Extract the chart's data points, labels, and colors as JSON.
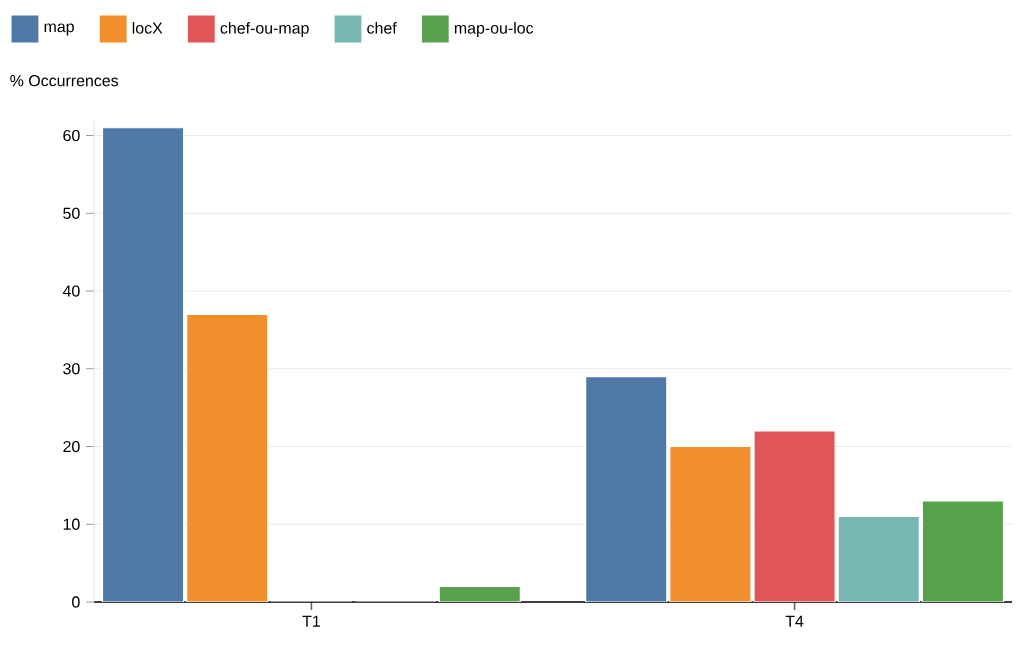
{
  "chart_data": {
    "type": "bar",
    "ylabel": "% Occurrences",
    "categories": [
      "T1",
      "T4"
    ],
    "series": [
      {
        "name": "map",
        "color": "#4e79a7",
        "values": [
          61,
          29
        ]
      },
      {
        "name": "locX",
        "color": "#f28e2b",
        "values": [
          37,
          20
        ]
      },
      {
        "name": "chef-ou-map",
        "color": "#e15759",
        "values": [
          0,
          22
        ]
      },
      {
        "name": "chef",
        "color": "#76b7b2",
        "values": [
          0,
          11
        ]
      },
      {
        "name": "map-ou-loc",
        "color": "#59a14f",
        "values": [
          2,
          13
        ]
      }
    ],
    "ylim": [
      0,
      62
    ],
    "yticks": [
      0,
      10,
      20,
      30,
      40,
      50,
      60
    ],
    "grid": "y",
    "legend": "top left"
  }
}
